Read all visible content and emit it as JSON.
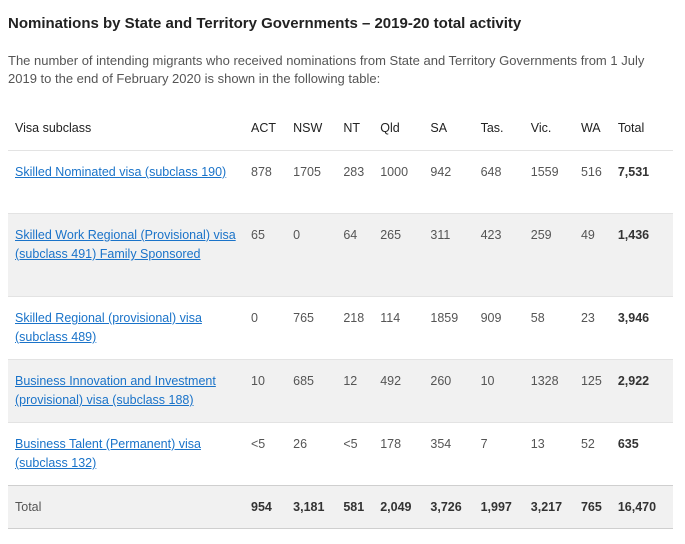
{
  "title": "Nominations by State and Territory Governments – 2019-20 total activity",
  "intro": "The number of intending migrants who received nominations from State and Territory Governments from 1 July 2019 to the end of February 2020 is shown in the following table:",
  "table": {
    "headers": [
      "Visa subclass",
      "ACT",
      "NSW",
      "NT",
      "Qld",
      "SA",
      "Tas.",
      "Vic.",
      "WA",
      "Total"
    ],
    "rows": [
      {
        "visa": "Skilled Nominated visa (subclass 190)",
        "values": [
          "878",
          "1705",
          "283",
          "1000",
          "942",
          "648",
          "1559",
          "516"
        ],
        "total": "7,531"
      },
      {
        "visa": "Skilled Work Regional (Provisional) visa (subclass 491) Family Sponsored",
        "values": [
          "65",
          "0",
          "64",
          "265",
          "311",
          "423",
          "259",
          "49"
        ],
        "total": "1,436"
      },
      {
        "visa": "Skilled Regional (provisional) visa (subclass 489)",
        "values": [
          "0",
          "765",
          "218",
          "114",
          "1859",
          "909",
          "58",
          "23"
        ],
        "total": "3,946"
      },
      {
        "visa": "Business Innovation and Investment (provisional) visa (subclass 188)",
        "values": [
          "10",
          "685",
          "12",
          "492",
          "260",
          "10",
          "1328",
          "125"
        ],
        "total": "2,922"
      },
      {
        "visa": "Business Talent (Permanent) visa (subclass 132)",
        "values": [
          "<5",
          "26",
          "<5",
          "178",
          "354",
          "7",
          "13",
          "52"
        ],
        "total": "635"
      }
    ],
    "total_row": {
      "label": "Total",
      "values": [
        "954",
        "3,181",
        "581",
        "2,049",
        "3,726",
        "1,997",
        "3,217",
        "765",
        "16,470"
      ]
    }
  }
}
